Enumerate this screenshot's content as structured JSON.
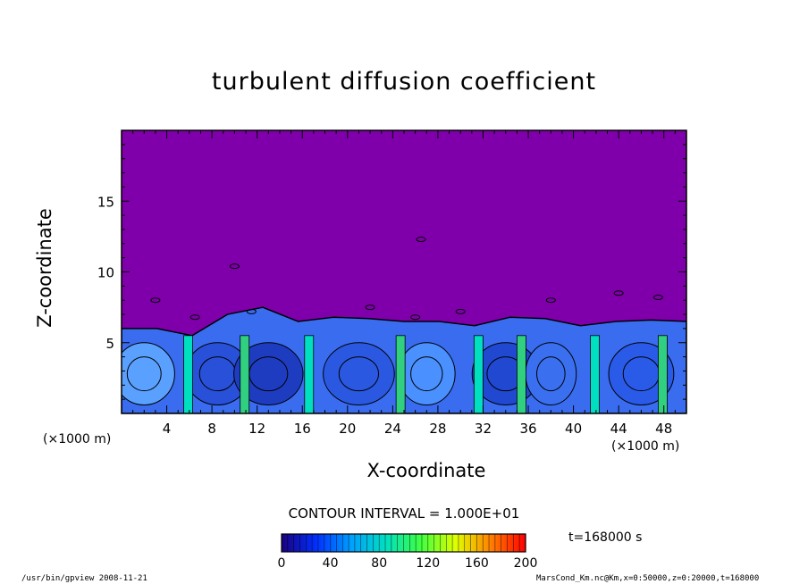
{
  "chart_data": {
    "type": "heatmap",
    "title": "turbulent diffusion coefficient",
    "xlabel": "X-coordinate",
    "ylabel": "Z-coordinate",
    "x_unit": "(×1000 m)",
    "y_unit": "(×1000 m)",
    "xlim": [
      0,
      50
    ],
    "ylim": [
      0,
      20
    ],
    "x_ticks": [
      4,
      8,
      12,
      16,
      20,
      24,
      28,
      32,
      36,
      40,
      44,
      48
    ],
    "y_ticks": [
      5,
      10,
      15
    ],
    "contour_interval": "CONTOUR INTERVAL = 1.000E+01",
    "time_label": "t=168000 s",
    "colorbar": {
      "ticks": [
        0,
        40,
        80,
        120,
        160,
        200
      ],
      "min": 0,
      "max": 200,
      "colors": [
        "#1a0080",
        "#0030ff",
        "#00a0ff",
        "#00e0c0",
        "#40ff40",
        "#e0ff00",
        "#ff8000",
        "#ff0000"
      ]
    },
    "background_color": "#7f00aa",
    "boundary_layer_top_km": [
      6.0,
      6.0,
      5.5,
      7.0,
      7.5,
      6.5,
      6.8,
      6.7,
      6.5,
      6.5,
      6.2,
      6.8,
      6.7,
      6.2,
      6.5,
      6.6,
      6.5
    ]
  },
  "footer": {
    "left": "/usr/bin/gpview   2008-11-21",
    "right": "MarsCond_Km.nc@Km,x=0:50000,z=0:20000,t=168000"
  }
}
